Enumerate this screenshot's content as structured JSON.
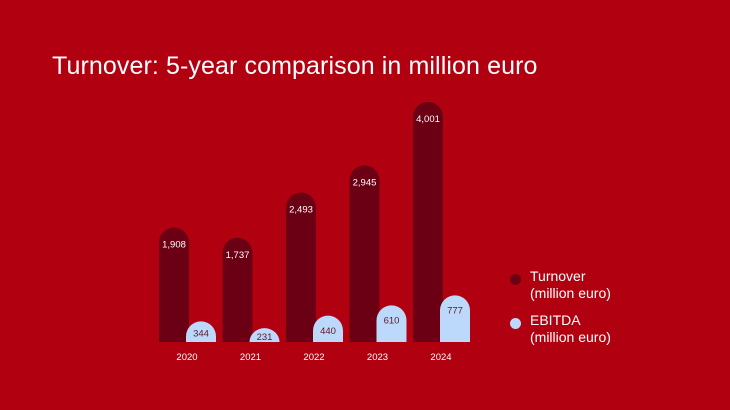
{
  "colors": {
    "background": "#b1000f",
    "turnover": "#6b0014",
    "ebitda": "#bcd9fb",
    "label_light": "#ffffff",
    "label_dark": "#5a1a28"
  },
  "chart_data": {
    "type": "bar",
    "title": "Turnover: 5-year comparison in million euro",
    "categories": [
      "2020",
      "2021",
      "2022",
      "2023",
      "2024"
    ],
    "series": [
      {
        "name": "Turnover\n(million euro)",
        "values": [
          1908,
          1737,
          2493,
          2945,
          4001
        ],
        "labels": [
          "1,908",
          "1,737",
          "2,493",
          "2,945",
          "4,001"
        ]
      },
      {
        "name": "EBITDA\n(million euro)",
        "values": [
          344,
          231,
          440,
          610,
          777
        ],
        "labels": [
          "344",
          "231",
          "440",
          "610",
          "777"
        ]
      }
    ],
    "grid": false,
    "legend_position": "right"
  }
}
